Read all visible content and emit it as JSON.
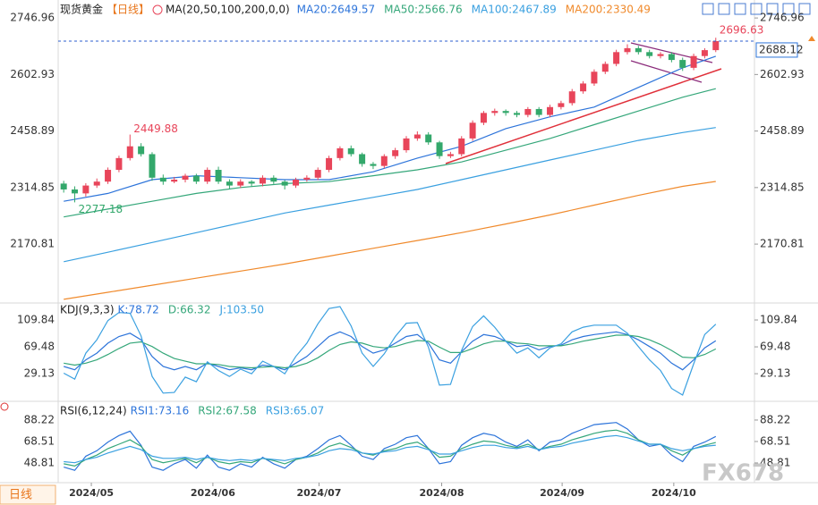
{
  "chart_data": [
    {
      "type": "candlestick",
      "title": "现货黄金",
      "period": "【日线】",
      "indicator": "MA(20,50,100,200,0,0)",
      "up_color": "#e8455a",
      "down_color": "#33a86b",
      "grid": false,
      "x": [
        0,
        1,
        2,
        3,
        4,
        5,
        6,
        7,
        8,
        9,
        10,
        11,
        12,
        13,
        14,
        15,
        16,
        17,
        18,
        19,
        20,
        21,
        22,
        23,
        24,
        25,
        26,
        27,
        28,
        29,
        30,
        31,
        32,
        33,
        34,
        35,
        36,
        37,
        38,
        39,
        40,
        41,
        42,
        43,
        44,
        45,
        46,
        47,
        48,
        49,
        50,
        51,
        52,
        53,
        54,
        55,
        56,
        57,
        58,
        59
      ],
      "open": [
        2325,
        2310,
        2300,
        2320,
        2330,
        2360,
        2390,
        2420,
        2400,
        2340,
        2330,
        2335,
        2345,
        2330,
        2360,
        2330,
        2320,
        2330,
        2325,
        2340,
        2330,
        2320,
        2335,
        2340,
        2360,
        2390,
        2415,
        2400,
        2375,
        2370,
        2395,
        2410,
        2440,
        2450,
        2430,
        2395,
        2400,
        2440,
        2480,
        2505,
        2510,
        2505,
        2500,
        2515,
        2500,
        2520,
        2530,
        2560,
        2580,
        2610,
        2630,
        2660,
        2670,
        2660,
        2650,
        2655,
        2640,
        2620,
        2650,
        2665
      ],
      "high": [
        2332,
        2318,
        2326,
        2338,
        2366,
        2396,
        2449.88,
        2428,
        2405,
        2348,
        2342,
        2350,
        2350,
        2366,
        2368,
        2336,
        2336,
        2334,
        2346,
        2346,
        2334,
        2340,
        2346,
        2366,
        2396,
        2420,
        2422,
        2404,
        2380,
        2400,
        2416,
        2446,
        2458,
        2456,
        2434,
        2406,
        2446,
        2486,
        2510,
        2516,
        2514,
        2510,
        2520,
        2520,
        2526,
        2536,
        2566,
        2586,
        2616,
        2636,
        2666,
        2680,
        2676,
        2666,
        2660,
        2660,
        2646,
        2656,
        2670,
        2696.63
      ],
      "low": [
        2302,
        2277.18,
        2292,
        2314,
        2324,
        2354,
        2384,
        2394,
        2332,
        2322,
        2326,
        2328,
        2324,
        2324,
        2324,
        2312,
        2314,
        2318,
        2318,
        2324,
        2310,
        2314,
        2330,
        2334,
        2354,
        2384,
        2394,
        2368,
        2362,
        2364,
        2388,
        2404,
        2434,
        2424,
        2388,
        2390,
        2394,
        2434,
        2474,
        2498,
        2498,
        2494,
        2494,
        2494,
        2494,
        2514,
        2524,
        2554,
        2574,
        2604,
        2624,
        2654,
        2654,
        2644,
        2644,
        2634,
        2612,
        2614,
        2644,
        2660
      ],
      "close": [
        2310,
        2300,
        2320,
        2330,
        2360,
        2390,
        2420,
        2400,
        2340,
        2330,
        2335,
        2345,
        2330,
        2360,
        2330,
        2320,
        2330,
        2325,
        2340,
        2330,
        2320,
        2335,
        2340,
        2360,
        2390,
        2415,
        2400,
        2375,
        2370,
        2395,
        2410,
        2440,
        2450,
        2430,
        2395,
        2400,
        2440,
        2480,
        2505,
        2510,
        2505,
        2500,
        2515,
        2500,
        2520,
        2530,
        2560,
        2580,
        2610,
        2630,
        2660,
        2670,
        2660,
        2650,
        2655,
        2640,
        2620,
        2650,
        2665,
        2688.12
      ],
      "series": [
        {
          "name": "MA20:2649.57",
          "color": "#2d74da",
          "x": [
            0,
            4,
            8,
            12,
            16,
            20,
            24,
            28,
            32,
            36,
            40,
            44,
            48,
            52,
            56,
            59
          ],
          "values": [
            2280,
            2300,
            2335,
            2345,
            2340,
            2335,
            2335,
            2355,
            2390,
            2420,
            2465,
            2495,
            2520,
            2570,
            2620,
            2649.57
          ]
        },
        {
          "name": "MA50:2566.76",
          "color": "#35a77a",
          "x": [
            0,
            4,
            8,
            12,
            16,
            20,
            24,
            28,
            32,
            36,
            40,
            44,
            48,
            52,
            56,
            59
          ],
          "values": [
            2240,
            2260,
            2280,
            2300,
            2315,
            2325,
            2330,
            2345,
            2360,
            2380,
            2410,
            2440,
            2475,
            2510,
            2545,
            2566.76
          ]
        },
        {
          "name": "MA100:2467.89",
          "color": "#3aa0e0",
          "x": [
            0,
            4,
            8,
            12,
            16,
            20,
            24,
            28,
            32,
            36,
            40,
            44,
            48,
            52,
            56,
            59
          ],
          "values": [
            2126,
            2150,
            2175,
            2200,
            2225,
            2250,
            2270,
            2290,
            2310,
            2335,
            2360,
            2385,
            2410,
            2435,
            2455,
            2467.89
          ]
        },
        {
          "name": "MA200:2330.49",
          "color": "#f08a2c",
          "x": [
            0,
            4,
            8,
            12,
            16,
            20,
            24,
            28,
            32,
            36,
            40,
            44,
            48,
            52,
            56,
            59
          ],
          "values": [
            2030,
            2048,
            2066,
            2084,
            2102,
            2120,
            2140,
            2160,
            2180,
            2200,
            2222,
            2245,
            2270,
            2295,
            2318,
            2330.49
          ]
        }
      ],
      "xlim": [
        -0.5,
        62.5
      ],
      "xticks": [
        {
          "value": 2.5,
          "label": "2024/05"
        },
        {
          "value": 13.5,
          "label": "2024/06"
        },
        {
          "value": 23.1,
          "label": "2024/07"
        },
        {
          "value": 34.2,
          "label": "2024/08"
        },
        {
          "value": 45.1,
          "label": "2024/09"
        },
        {
          "value": 55.2,
          "label": "2024/10"
        }
      ],
      "ylim": [
        2023,
        2770
      ],
      "yticks": [
        2746.96,
        2602.93,
        2458.89,
        2314.85,
        2170.81
      ]
    },
    {
      "type": "line",
      "title": "KDJ(9,3,3)",
      "ylim": [
        -11,
        134
      ],
      "yticks": [
        109.84,
        69.48,
        29.13
      ],
      "series": [
        {
          "name": "K:78.72",
          "color": "#2d74da",
          "values": [
            40,
            35,
            50,
            60,
            75,
            85,
            90,
            80,
            55,
            40,
            35,
            40,
            35,
            45,
            40,
            35,
            38,
            35,
            42,
            40,
            35,
            45,
            55,
            70,
            85,
            92,
            85,
            70,
            60,
            65,
            75,
            85,
            88,
            75,
            50,
            45,
            62,
            78,
            88,
            85,
            78,
            70,
            72,
            65,
            70,
            72,
            80,
            85,
            88,
            90,
            92,
            88,
            80,
            70,
            60,
            45,
            35,
            50,
            68,
            78.72
          ]
        },
        {
          "name": "D:66.32",
          "color": "#35a77a",
          "values": [
            45,
            42,
            45,
            50,
            58,
            67,
            75,
            77,
            70,
            60,
            52,
            48,
            44,
            44,
            43,
            40,
            39,
            38,
            39,
            40,
            38,
            40,
            45,
            53,
            64,
            73,
            77,
            75,
            70,
            68,
            70,
            75,
            79,
            78,
            69,
            61,
            61,
            67,
            74,
            78,
            78,
            75,
            74,
            71,
            71,
            71,
            74,
            78,
            81,
            84,
            87,
            87,
            85,
            80,
            73,
            64,
            54,
            53,
            58,
            66.32
          ]
        },
        {
          "name": "J:103.50",
          "color": "#3aa0e0",
          "values": [
            30,
            21,
            60,
            80,
            109,
            121,
            120,
            86,
            25,
            0,
            1,
            24,
            17,
            47,
            34,
            25,
            36,
            29,
            48,
            40,
            29,
            55,
            75,
            104,
            127,
            130,
            101,
            60,
            40,
            59,
            85,
            105,
            106,
            69,
            12,
            13,
            64,
            100,
            116,
            99,
            78,
            60,
            68,
            53,
            68,
            74,
            92,
            99,
            102,
            102,
            102,
            90,
            70,
            50,
            34,
            7,
            -3,
            44,
            88,
            103.5
          ]
        }
      ]
    },
    {
      "type": "line",
      "title": "RSI(6,12,24)",
      "ylim": [
        30.7,
        104.6
      ],
      "yticks": [
        88.22,
        68.51,
        48.81
      ],
      "series": [
        {
          "name": "RSI1:73.16",
          "color": "#2d74da",
          "values": [
            45,
            42,
            55,
            60,
            68,
            74,
            78,
            65,
            45,
            42,
            48,
            52,
            44,
            56,
            45,
            42,
            48,
            45,
            54,
            48,
            44,
            52,
            55,
            62,
            70,
            74,
            65,
            55,
            52,
            62,
            66,
            72,
            74,
            62,
            48,
            50,
            65,
            72,
            76,
            74,
            68,
            64,
            70,
            60,
            68,
            70,
            76,
            80,
            84,
            85,
            86,
            80,
            70,
            64,
            66,
            56,
            50,
            64,
            68,
            73.16
          ]
        },
        {
          "name": "RSI2:67.58",
          "color": "#35a77a",
          "values": [
            48,
            46,
            52,
            56,
            62,
            66,
            70,
            64,
            52,
            49,
            51,
            53,
            49,
            54,
            50,
            48,
            50,
            49,
            53,
            51,
            48,
            52,
            54,
            58,
            64,
            67,
            63,
            58,
            56,
            60,
            62,
            66,
            68,
            62,
            54,
            55,
            62,
            66,
            69,
            68,
            65,
            63,
            66,
            61,
            64,
            66,
            70,
            73,
            76,
            78,
            79,
            76,
            70,
            66,
            66,
            60,
            56,
            62,
            65,
            67.58
          ]
        },
        {
          "name": "RSI3:65.07",
          "color": "#3aa0e0",
          "values": [
            50,
            49,
            52,
            54,
            58,
            61,
            64,
            61,
            55,
            53,
            53,
            54,
            52,
            54,
            52,
            51,
            52,
            51,
            53,
            52,
            51,
            53,
            54,
            56,
            60,
            62,
            61,
            58,
            57,
            59,
            60,
            63,
            64,
            61,
            57,
            57,
            60,
            63,
            65,
            65,
            63,
            62,
            64,
            61,
            63,
            64,
            67,
            69,
            71,
            73,
            74,
            72,
            69,
            66,
            66,
            62,
            60,
            62,
            64,
            65.07
          ]
        }
      ]
    }
  ],
  "period_button": "日线",
  "watermark": "FX678"
}
